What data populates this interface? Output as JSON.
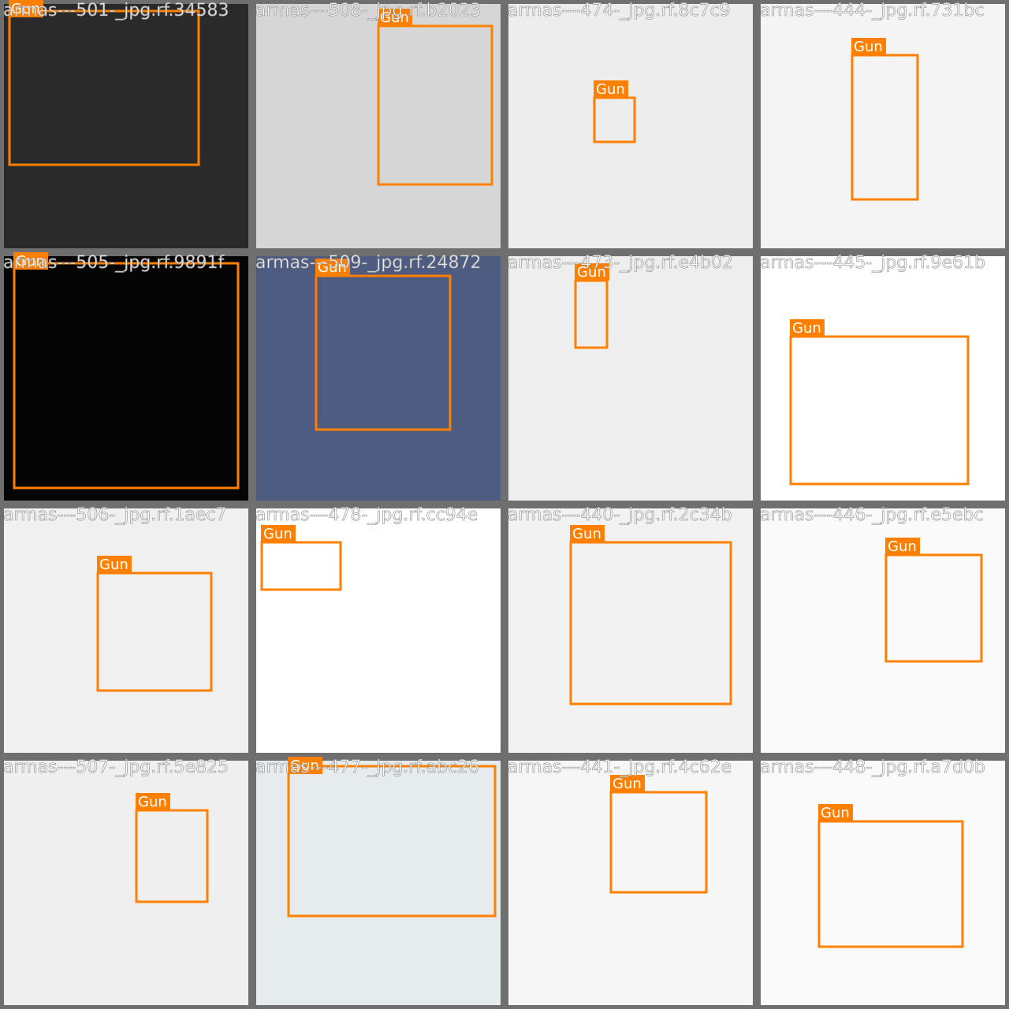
{
  "tiles": [
    {
      "filename": "armas---501-_jpg.rf.34583",
      "boxes": [
        {
          "label": "Gun"
        }
      ]
    },
    {
      "filename": "armas---508-_jpg.rf.b2023",
      "boxes": [
        {
          "label": "Gun"
        }
      ]
    },
    {
      "filename": "armas---474-_jpg.rf.8c7c9",
      "boxes": [
        {
          "label": "Gun"
        }
      ]
    },
    {
      "filename": "armas---444-_jpg.rf.731bc",
      "boxes": [
        {
          "label": "Gun"
        }
      ]
    },
    {
      "filename": "armas---505-_jpg.rf.9891f",
      "boxes": [
        {
          "label": "Gun"
        }
      ]
    },
    {
      "filename": "armas---509-_jpg.rf.24872",
      "boxes": [
        {
          "label": "Gun"
        }
      ]
    },
    {
      "filename": "armas---473-_jpg.rf.e4b02",
      "boxes": [
        {
          "label": "Gun"
        }
      ]
    },
    {
      "filename": "armas---445-_jpg.rf.9e61b",
      "boxes": [
        {
          "label": "Gun"
        }
      ]
    },
    {
      "filename": "armas---506-_jpg.rf.1aec7",
      "boxes": [
        {
          "label": "Gun"
        }
      ]
    },
    {
      "filename": "armas---478-_jpg.rf.cc94e",
      "boxes": [
        {
          "label": "Gun"
        }
      ]
    },
    {
      "filename": "armas---440-_jpg.rf.2c34b",
      "boxes": [
        {
          "label": "Gun"
        }
      ]
    },
    {
      "filename": "armas---446-_jpg.rf.e5ebc",
      "boxes": [
        {
          "label": "Gun"
        }
      ]
    },
    {
      "filename": "armas---507-_jpg.rf.5e825",
      "boxes": [
        {
          "label": "Gun"
        }
      ]
    },
    {
      "filename": "armas---477-_jpg.rf.abc26",
      "boxes": [
        {
          "label": "Gun"
        }
      ]
    },
    {
      "filename": "armas---441-_jpg.rf.4c62e",
      "boxes": [
        {
          "label": "Gun"
        }
      ]
    },
    {
      "filename": "armas---448-_jpg.rf.a7d0b",
      "boxes": [
        {
          "label": "Gun"
        }
      ]
    }
  ]
}
